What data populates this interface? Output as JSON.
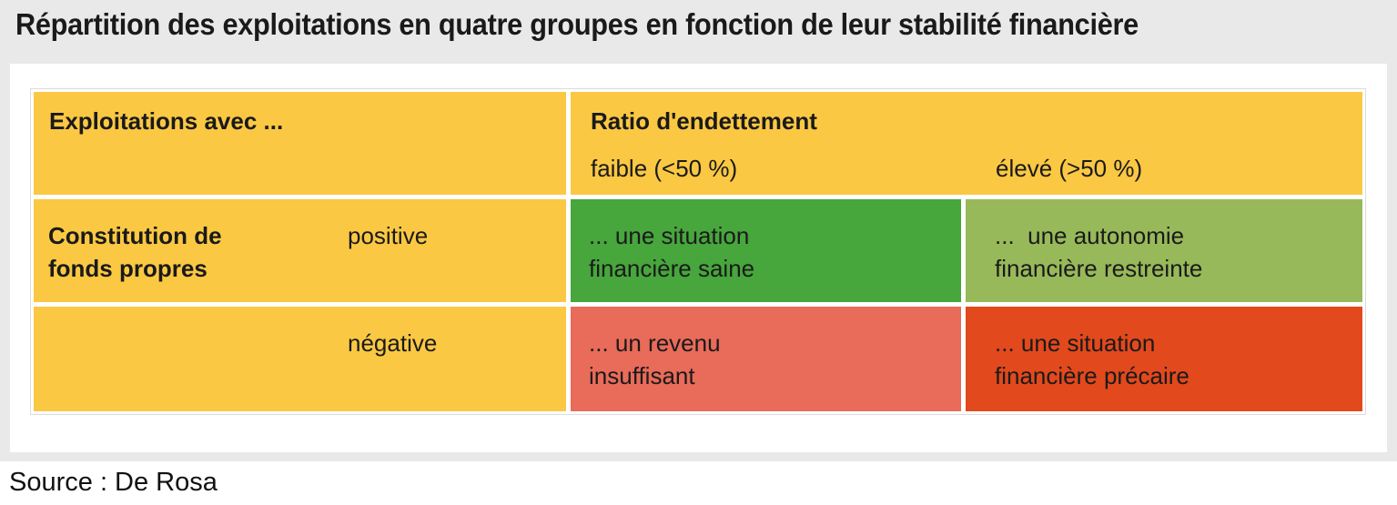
{
  "title": "Répartition des exploitations en quatre groupes en fonction de leur stabilité financière",
  "source": "Source : De Rosa",
  "colors": {
    "background_gray": "#e9e9e9",
    "panel_white": "#ffffff",
    "table_border": "#dcdcdc",
    "yellow": "#fbc843",
    "green": "#47a63c",
    "light_green": "#98b95a",
    "salmon": "#e96b59",
    "red": "#e2491c",
    "text": "#1a1a1a"
  },
  "table": {
    "corner_header": "Exploitations avec ...",
    "ratio_header": "Ratio d'endettement",
    "ratio_levels": [
      "faible (<50 %)",
      "élevé (>50 %)"
    ],
    "row_group_label": "Constitution de\nfonds propres",
    "rows": [
      {
        "label": "positive",
        "cells": [
          {
            "text": "... une situation\nfinancière saine",
            "color_key": "green"
          },
          {
            "text": "...  une autonomie\nfinancière restreinte",
            "color_key": "light_green"
          }
        ]
      },
      {
        "label": "négative",
        "cells": [
          {
            "text": "... un revenu\ninsuffisant",
            "color_key": "salmon"
          },
          {
            "text": "... une situation\nfinancière précaire",
            "color_key": "red"
          }
        ]
      }
    ]
  }
}
